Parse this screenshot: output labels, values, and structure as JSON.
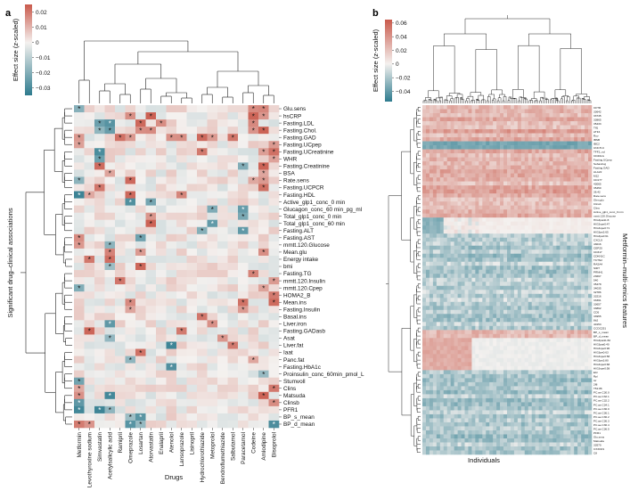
{
  "colors": {
    "neg": "#2e7b8e",
    "zero": "#f4f1ef",
    "pos": "#c95a4c",
    "star": "#111111"
  },
  "chart_data": [
    {
      "panel": "a",
      "type": "heatmap",
      "colorbar_label": "Effect size (z-scaled)",
      "colorbar_ticks": [
        "0.02",
        "0.01",
        "0",
        "−0.01",
        "−0.02",
        "−0.03"
      ],
      "colorbar_range": [
        -0.035,
        0.025
      ],
      "xlabel": "Drugs",
      "ylabel": "Significant drug–clinical associations",
      "columns": [
        "Metformin",
        "Levothyroxine sodium",
        "Simvastatin",
        "Acetylsalicylic acid",
        "Ramipril",
        "Omeprazole",
        "Losartan",
        "Atorvastatin",
        "Enalapril",
        "Atenolol",
        "Lansoprazole",
        "Lisinopril",
        "Hydrochlorothiazide",
        "Metoprolol",
        "Bendroflumethiazide",
        "Salbutamol",
        "Paracetamol",
        "Codeine",
        "Amlodipine",
        "Bisoprolol"
      ],
      "rows": [
        "Glu.sens",
        "hsCRP",
        "Fasting.LDL",
        "Fasting.Chol.",
        "Fasting.GAD",
        "Fasting.UCpep",
        "Fasting.UCreatinine",
        "WHR",
        "Fasting.Creatinine",
        "BSA",
        "Rate.sens",
        "Fasting.UCPCR",
        "Fasting.HDL",
        "Active_glp1_conc_0 min",
        "Glucagon_conc_60 min_pg_ml",
        "Total_glp1_conc_0 min",
        "Total_glp1_conc_60 min",
        "Fasting.ALT",
        "Fasting.AST",
        "mmtt.120.Glucose",
        "Mean.glu",
        "Energy intake",
        "bmi",
        "Fasting.TG",
        "mmtt.120.Insulin",
        "mmtt.120.Cpep",
        "HOMA2_B",
        "Mean.ins",
        "Fasting.Insulin",
        "Basal.ins",
        "Liver.iron",
        "Fasting.GADasb",
        "Asat",
        "Liver.fat",
        "Iaat",
        "Panc.fat",
        "Fasting.HbA1c",
        "Proinsulin_conc_60min_pmol_L",
        "Stumvoll",
        "Clins",
        "Matsuda",
        "Clinsb",
        "PFR1",
        "BP_s_mean",
        "BP_d_mean"
      ],
      "significant_cells": [
        [
          0,
          0,
          "-"
        ],
        [
          0,
          17,
          "+"
        ],
        [
          0,
          18,
          "+"
        ],
        [
          1,
          5,
          "+"
        ],
        [
          1,
          7,
          "+"
        ],
        [
          1,
          17,
          "+"
        ],
        [
          1,
          18,
          "+"
        ],
        [
          2,
          2,
          "-"
        ],
        [
          2,
          3,
          "-"
        ],
        [
          2,
          6,
          "+"
        ],
        [
          2,
          8,
          "+"
        ],
        [
          2,
          17,
          "+"
        ],
        [
          3,
          2,
          "-"
        ],
        [
          3,
          3,
          "-"
        ],
        [
          3,
          6,
          "+"
        ],
        [
          3,
          7,
          "+"
        ],
        [
          3,
          17,
          "+"
        ],
        [
          3,
          18,
          "+"
        ],
        [
          4,
          0,
          "+"
        ],
        [
          4,
          4,
          "+"
        ],
        [
          4,
          5,
          "+"
        ],
        [
          4,
          9,
          "+"
        ],
        [
          4,
          10,
          "+"
        ],
        [
          4,
          12,
          "+"
        ],
        [
          4,
          13,
          "+"
        ],
        [
          4,
          15,
          "+"
        ],
        [
          5,
          0,
          "+"
        ],
        [
          5,
          19,
          "+"
        ],
        [
          6,
          2,
          "-"
        ],
        [
          6,
          12,
          "+"
        ],
        [
          6,
          18,
          "+"
        ],
        [
          6,
          19,
          "+"
        ],
        [
          7,
          2,
          "-"
        ],
        [
          7,
          19,
          "+"
        ],
        [
          8,
          2,
          "+"
        ],
        [
          8,
          16,
          "-"
        ],
        [
          8,
          18,
          "+"
        ],
        [
          9,
          3,
          "+"
        ],
        [
          9,
          18,
          "+"
        ],
        [
          10,
          0,
          "-"
        ],
        [
          10,
          5,
          "+"
        ],
        [
          10,
          17,
          "+"
        ],
        [
          10,
          18,
          "+"
        ],
        [
          11,
          2,
          "+"
        ],
        [
          11,
          18,
          "+"
        ],
        [
          12,
          0,
          "-"
        ],
        [
          12,
          1,
          "+"
        ],
        [
          12,
          5,
          "+"
        ],
        [
          12,
          10,
          "+"
        ],
        [
          13,
          5,
          "-"
        ],
        [
          13,
          7,
          "-"
        ],
        [
          14,
          13,
          "-"
        ],
        [
          14,
          16,
          "-"
        ],
        [
          15,
          7,
          "+"
        ],
        [
          15,
          16,
          "-"
        ],
        [
          16,
          7,
          "+"
        ],
        [
          16,
          13,
          "-"
        ],
        [
          17,
          12,
          "-"
        ],
        [
          17,
          16,
          "-"
        ],
        [
          18,
          0,
          "+"
        ],
        [
          18,
          6,
          "-"
        ],
        [
          19,
          0,
          "+"
        ],
        [
          19,
          3,
          "-"
        ],
        [
          20,
          3,
          "+"
        ],
        [
          20,
          6,
          "+"
        ],
        [
          20,
          18,
          "+"
        ],
        [
          21,
          1,
          "+"
        ],
        [
          21,
          3,
          "+"
        ],
        [
          22,
          3,
          "-"
        ],
        [
          22,
          6,
          "+"
        ],
        [
          23,
          17,
          "+"
        ],
        [
          24,
          4,
          "+"
        ],
        [
          24,
          19,
          "+"
        ],
        [
          25,
          0,
          "-"
        ],
        [
          25,
          18,
          "+"
        ],
        [
          26,
          19,
          "+"
        ],
        [
          27,
          5,
          "+"
        ],
        [
          27,
          16,
          "+"
        ],
        [
          27,
          19,
          "+"
        ],
        [
          28,
          5,
          "+"
        ],
        [
          28,
          16,
          "+"
        ],
        [
          29,
          12,
          "+"
        ],
        [
          30,
          3,
          "-"
        ],
        [
          30,
          13,
          "+"
        ],
        [
          31,
          1,
          "+"
        ],
        [
          31,
          10,
          "+"
        ],
        [
          32,
          3,
          "-"
        ],
        [
          32,
          14,
          "+"
        ],
        [
          33,
          9,
          "-"
        ],
        [
          33,
          15,
          "+"
        ],
        [
          34,
          6,
          "+"
        ],
        [
          35,
          5,
          "-"
        ],
        [
          35,
          17,
          "+"
        ],
        [
          36,
          9,
          "-"
        ],
        [
          37,
          18,
          "-"
        ],
        [
          38,
          0,
          "-"
        ],
        [
          39,
          0,
          "+"
        ],
        [
          39,
          19,
          "+"
        ],
        [
          40,
          0,
          "+"
        ],
        [
          40,
          3,
          "-"
        ],
        [
          40,
          18,
          "+"
        ],
        [
          41,
          0,
          "-"
        ],
        [
          41,
          19,
          "+"
        ],
        [
          42,
          0,
          "-"
        ],
        [
          42,
          2,
          "-"
        ],
        [
          42,
          3,
          "-"
        ],
        [
          43,
          5,
          "-"
        ],
        [
          43,
          6,
          "-"
        ],
        [
          44,
          0,
          "+"
        ],
        [
          44,
          1,
          "+"
        ],
        [
          44,
          5,
          "-"
        ],
        [
          44,
          6,
          "-"
        ],
        [
          44,
          19,
          "-"
        ]
      ]
    },
    {
      "panel": "b",
      "type": "heatmap",
      "colorbar_label": "Effect size (z-scaled)",
      "colorbar_ticks": [
        "0.06",
        "0.04",
        "0.02",
        "0",
        "−0.02",
        "−0.04"
      ],
      "colorbar_range": [
        -0.055,
        0.065
      ],
      "xlabel": "Individuals",
      "ylabel": "Metformin–multi-omics features",
      "row_labels": [
        "CFTR",
        "33642",
        "33745",
        "33865",
        "35433",
        "Tff1",
        "ATF4",
        "Ruv",
        "IBSB",
        "IBC2",
        "UNCH-C",
        "TFF2_nd",
        "CD40LG",
        "Fasting.UCpep",
        "Sebastrug",
        "Fasting.GAD",
        "ALA22",
        "M12",
        "CD177",
        "43065",
        "35450",
        "36.42",
        "Rate.sens",
        "Glen.glu",
        "Clinsb",
        "Clins",
        "Active_glp1_conc_0 min",
        "mmtt.120.Glucose",
        "HIG3pat11:8",
        "HIG3spe0:47",
        "HIG3spe0:71",
        "HIG3pe2:65",
        "HIG3pe0:61",
        "CXCL9",
        "43016",
        "CEP25",
        "CD317",
        "CDKN1C",
        "TCTN2",
        "RASA4",
        "SIDT",
        "PRNH1",
        "23697",
        "540",
        "35478",
        "34035",
        "32786",
        "33216",
        "33391",
        "33657",
        "33862",
        "CD5",
        "33955",
        "8b2",
        "40153",
        "CCDC251",
        "BP_s_mean",
        "BP_d_mean",
        "HIG3pat11:82",
        "HIG3pat0:40",
        "HIG3spe0:96",
        "HIG3pe0:63",
        "HIG3spe0:58",
        "HIG3pe2:80",
        "HIG3spe0:68",
        "HIG3spe0:58",
        "Ebl",
        "Rpl",
        "Icr",
        "2f8",
        "T51:86",
        "PC.ae.C30.0",
        "PC.ae.C32.1",
        "PC.ae.C32.2",
        "PC.ae.C34.1",
        "PC.ae.C36.0",
        "PC.ae.C36.1",
        "PC.ae.C36.2",
        "PC.ae.C36.3",
        "PC.ae.C36.4",
        "PC.ae.C36.5",
        "PFR1",
        "Glu.sens",
        "Matsuda",
        "33570",
        "CX3CR1",
        "C8"
      ]
    }
  ]
}
